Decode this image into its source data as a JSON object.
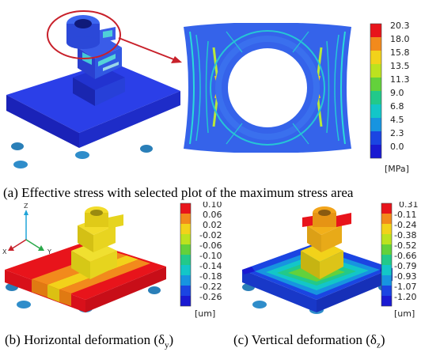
{
  "figure": {
    "panel_a": {
      "caption": "(a) Effective stress with selected plot of the maximum stress area",
      "legend": {
        "values": [
          "20.3",
          "18.0",
          "15.8",
          "13.5",
          "11.3",
          "9.0",
          "6.8",
          "4.5",
          "2.3",
          "0.0"
        ],
        "unit": "[MPa]",
        "colors": [
          "#e8141b",
          "#f28a1c",
          "#f2d21a",
          "#bce21f",
          "#63d13b",
          "#22c98a",
          "#13c6c8",
          "#1794e0",
          "#1b45e2",
          "#1a1ad2"
        ]
      }
    },
    "panel_b": {
      "caption_main": "(b) Horizontal deformation (δ",
      "caption_sub": "y",
      "caption_end": ")",
      "axes": {
        "z": "Z",
        "x": "X",
        "y": "Y"
      },
      "legend": {
        "values": [
          "0.10",
          "0.06",
          "0.02",
          "-0.02",
          "-0.06",
          "-0.10",
          "-0.14",
          "-0.18",
          "-0.22",
          "-0.26"
        ],
        "unit": "[um]",
        "colors": [
          "#e8141b",
          "#f28a1c",
          "#f2d21a",
          "#bce21f",
          "#63d13b",
          "#22c98a",
          "#13c6c8",
          "#1794e0",
          "#1b45e2",
          "#1a1ad2"
        ]
      }
    },
    "panel_c": {
      "caption_main": "(c) Vertical deformation (δ",
      "caption_sub": "z",
      "caption_end": ")",
      "legend": {
        "values": [
          "0.31",
          "-0.11",
          "-0.24",
          "-0.38",
          "-0.52",
          "-0.66",
          "-0.79",
          "-0.93",
          "-1.07",
          "-1.20"
        ],
        "unit": "[um]",
        "colors": [
          "#e8141b",
          "#f28a1c",
          "#f2d21a",
          "#bce21f",
          "#63d13b",
          "#22c98a",
          "#13c6c8",
          "#1794e0",
          "#1b45e2",
          "#1a1ad2"
        ]
      }
    }
  }
}
